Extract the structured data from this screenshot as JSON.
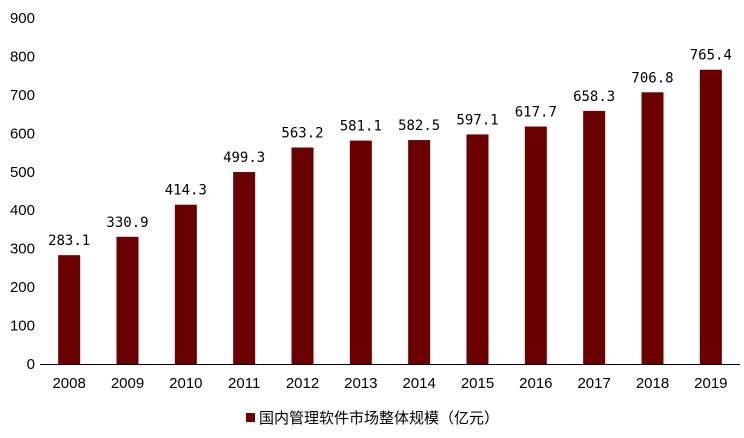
{
  "chart_data": {
    "type": "bar",
    "categories": [
      "2008",
      "2009",
      "2010",
      "2011",
      "2012",
      "2013",
      "2014",
      "2015",
      "2016",
      "2017",
      "2018",
      "2019"
    ],
    "series": [
      {
        "name": "国内管理软件市场整体规模（亿元）",
        "values": [
          283.1,
          330.9,
          414.3,
          499.3,
          563.2,
          581.1,
          582.5,
          597.1,
          617.7,
          658.3,
          706.8,
          765.4
        ],
        "data_labels": [
          "283.1",
          "330.9",
          "414.3",
          "499.3",
          "563.2",
          "581.1",
          "582.5",
          "597.1",
          "617.7",
          "658.3",
          "706.8",
          "765.4"
        ]
      }
    ],
    "title": "",
    "xlabel": "",
    "ylabel": "",
    "ylim": [
      0,
      900
    ],
    "yticks": [
      "0",
      "100",
      "200",
      "300",
      "400",
      "500",
      "600",
      "700",
      "800",
      "900"
    ],
    "grid": false,
    "legend_position": "bottom",
    "colors": {
      "bar": "#6B0000",
      "axis": "#000000"
    }
  }
}
